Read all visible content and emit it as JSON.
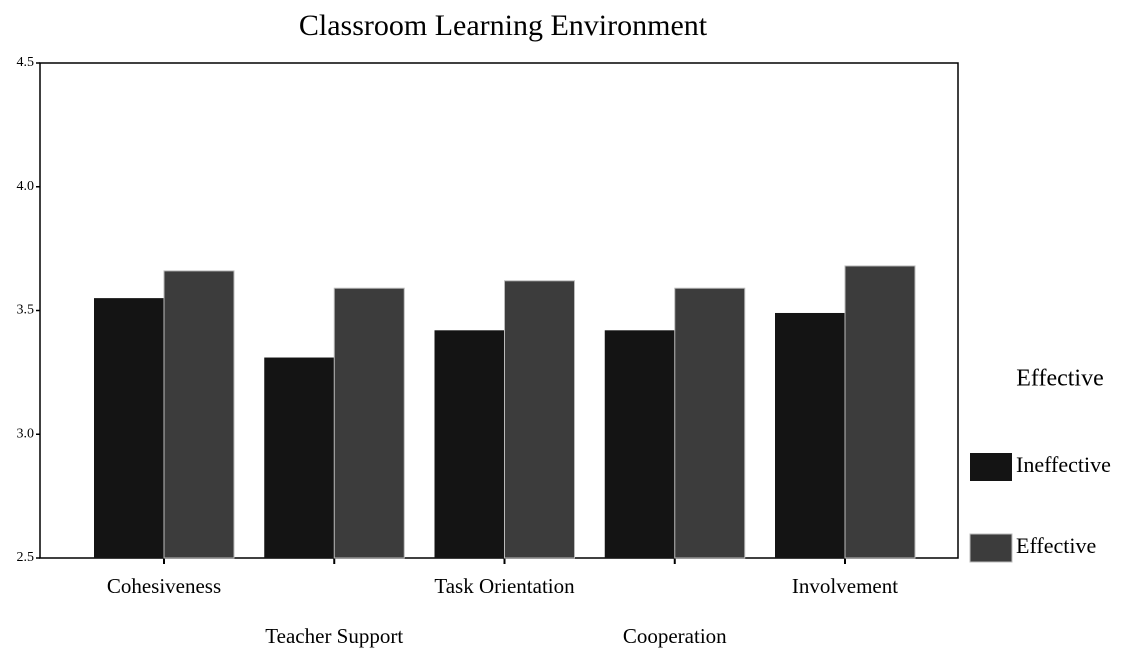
{
  "chart_data": {
    "type": "bar",
    "title": "Classroom Learning Environment",
    "categories": [
      "Cohesiveness",
      "Teacher Support",
      "Task Orientation",
      "Cooperation",
      "Involvement"
    ],
    "series": [
      {
        "name": "Ineffective",
        "color": "#141414",
        "values": [
          3.55,
          3.31,
          3.42,
          3.42,
          3.49
        ]
      },
      {
        "name": "Effective",
        "color": "#3c3c3c",
        "values": [
          3.66,
          3.59,
          3.62,
          3.59,
          3.68
        ]
      }
    ],
    "ylim": [
      2.5,
      4.5
    ],
    "yticks": [
      {
        "value": 2.5,
        "label": "2.5"
      },
      {
        "value": 3.0,
        "label": "3.0"
      },
      {
        "value": 3.5,
        "label": "3.5"
      },
      {
        "value": 4.0,
        "label": "4.0"
      },
      {
        "value": 4.5,
        "label": "4.5"
      }
    ],
    "legend_title": "Effective",
    "legend": "right"
  }
}
